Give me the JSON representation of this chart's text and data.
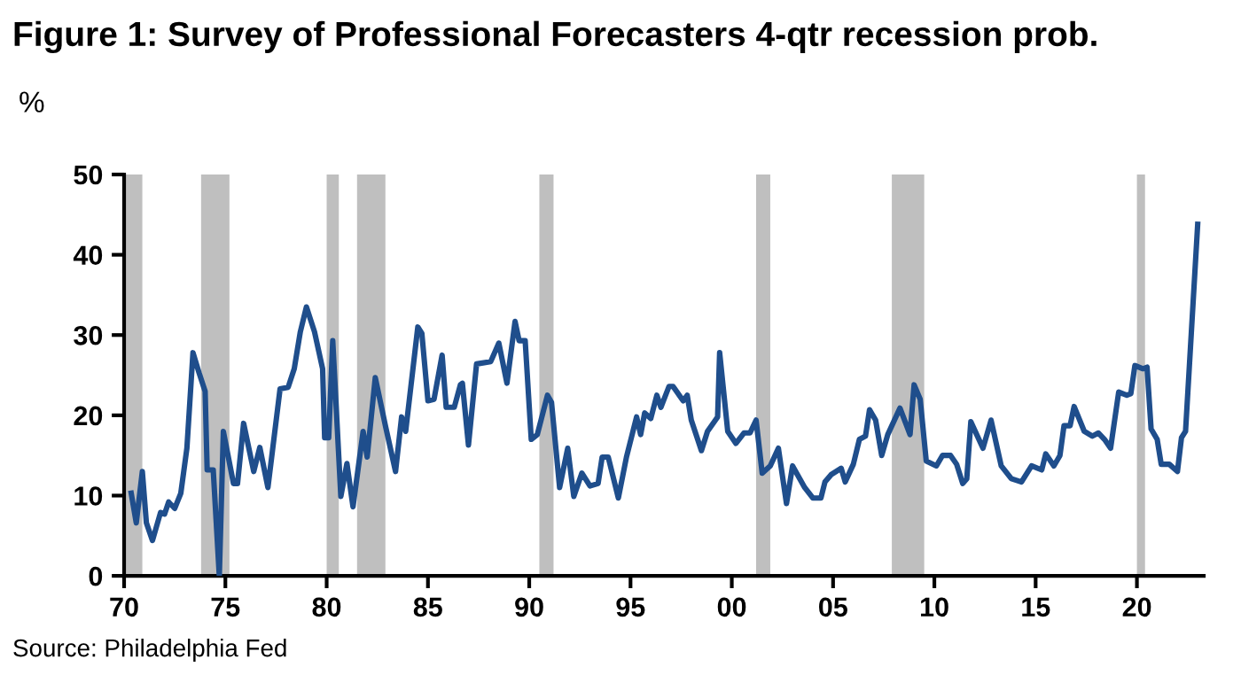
{
  "chart_data": {
    "type": "line",
    "title": "Figure 1: Survey of Professional Forecasters 4-qtr recession prob.",
    "ylabel": "%",
    "annotations": [
      "Source: Philadelphia Fed"
    ],
    "x": [
      1970.35,
      1970.6,
      1970.9,
      1971.1,
      1971.4,
      1971.8,
      1972.0,
      1972.2,
      1972.5,
      1972.8,
      1973.1,
      1973.4,
      1973.7,
      1974.0,
      1974.1,
      1974.4,
      1974.7,
      1974.9,
      1975.4,
      1975.6,
      1975.9,
      1976.4,
      1976.7,
      1977.1,
      1977.7,
      1978.1,
      1978.4,
      1978.7,
      1979.0,
      1979.4,
      1979.8,
      1979.9,
      1980.1,
      1980.3,
      1980.7,
      1981.0,
      1981.3,
      1981.8,
      1982.0,
      1982.4,
      1982.9,
      1983.4,
      1983.7,
      1983.9,
      1984.5,
      1984.7,
      1985.0,
      1985.3,
      1985.7,
      1985.9,
      1986.3,
      1986.6,
      1986.7,
      1987.0,
      1987.4,
      1988.1,
      1988.5,
      1988.9,
      1989.3,
      1989.5,
      1989.8,
      1990.1,
      1990.4,
      1990.9,
      1991.1,
      1991.5,
      1991.9,
      1992.2,
      1992.6,
      1993.0,
      1993.4,
      1993.6,
      1993.9,
      1994.4,
      1994.8,
      1995.3,
      1995.5,
      1995.7,
      1996.0,
      1996.3,
      1996.5,
      1996.9,
      1997.1,
      1997.6,
      1997.8,
      1998.0,
      1998.5,
      1998.8,
      1999.3,
      1999.4,
      1999.8,
      2000.2,
      2000.6,
      2000.9,
      2001.2,
      2001.5,
      2001.9,
      2002.3,
      2002.7,
      2003.0,
      2003.6,
      2004.0,
      2004.4,
      2004.6,
      2004.9,
      2005.4,
      2005.6,
      2006.0,
      2006.3,
      2006.6,
      2006.8,
      2007.1,
      2007.4,
      2007.7,
      2008.3,
      2008.8,
      2009.0,
      2009.3,
      2009.6,
      2010.1,
      2010.4,
      2010.8,
      2011.1,
      2011.4,
      2011.6,
      2011.8,
      2012.4,
      2012.8,
      2013.3,
      2013.8,
      2014.3,
      2014.8,
      2015.3,
      2015.5,
      2015.9,
      2016.2,
      2016.4,
      2016.7,
      2016.9,
      2017.4,
      2017.8,
      2018.1,
      2018.4,
      2018.7,
      2019.1,
      2019.5,
      2019.7,
      2019.9,
      2020.3,
      2020.5,
      2020.7,
      2021.0,
      2021.2,
      2021.6,
      2022.0,
      2022.2,
      2022.4,
      2023.0
    ],
    "series": [
      {
        "color": "#1f4e8c",
        "values": [
          10.3,
          6.6,
          13,
          6.6,
          4.4,
          7.9,
          7.7,
          9.2,
          8.4,
          10.3,
          15.9,
          27.8,
          25.3,
          23,
          13.2,
          13.2,
          0,
          18,
          11.5,
          11.5,
          19,
          13,
          16,
          11,
          23.3,
          23.5,
          25.8,
          30.4,
          33.5,
          30.4,
          25.8,
          17.2,
          17.2,
          29.3,
          9.9,
          14,
          8.6,
          18,
          14.8,
          24.7,
          18.7,
          13,
          19.8,
          18,
          31,
          30.2,
          21.8,
          22,
          27.5,
          21,
          21,
          23.8,
          24,
          16.3,
          26.4,
          26.7,
          29,
          24,
          31.7,
          29.3,
          29.3,
          17,
          17.6,
          22.5,
          21.6,
          11,
          15.9,
          9.9,
          12.8,
          11.2,
          11.5,
          14.8,
          14.8,
          9.7,
          14.8,
          19.8,
          17.6,
          20.3,
          19.6,
          22.5,
          21,
          23.6,
          23.6,
          21.8,
          22.5,
          19.4,
          15.6,
          18,
          19.8,
          27.8,
          18,
          16.5,
          17.8,
          17.8,
          19.4,
          12.8,
          13.7,
          15.9,
          9,
          13.7,
          11,
          9.7,
          9.7,
          11.7,
          12.6,
          13.4,
          11.7,
          13.9,
          17,
          17.4,
          20.7,
          19.4,
          15,
          17.6,
          20.9,
          17.6,
          23.8,
          22,
          14.3,
          13.7,
          15,
          15,
          13.9,
          11.5,
          12.1,
          19.2,
          15.9,
          19.4,
          13.7,
          12.1,
          11.7,
          13.7,
          13.2,
          15.2,
          13.7,
          15,
          18.7,
          18.7,
          21.1,
          18,
          17.4,
          17.8,
          17,
          15.9,
          22.9,
          22.5,
          22.7,
          26.2,
          25.8,
          26,
          18.3,
          17,
          13.9,
          13.9,
          13,
          17.2,
          18,
          43.8
        ]
      }
    ],
    "xlim": [
      1970,
      2023.3
    ],
    "xticks": [
      {
        "value": 1970,
        "label": "70"
      },
      {
        "value": 1975,
        "label": "75"
      },
      {
        "value": 1980,
        "label": "80"
      },
      {
        "value": 1985,
        "label": "85"
      },
      {
        "value": 1990,
        "label": "90"
      },
      {
        "value": 1995,
        "label": "95"
      },
      {
        "value": 2000,
        "label": "00"
      },
      {
        "value": 2005,
        "label": "05"
      },
      {
        "value": 2010,
        "label": "10"
      },
      {
        "value": 2015,
        "label": "15"
      },
      {
        "value": 2020,
        "label": "20"
      }
    ],
    "ylim": [
      0,
      50
    ],
    "yticks": [
      0,
      10,
      20,
      30,
      40,
      50
    ],
    "grid": false,
    "legend": false,
    "marker": "none",
    "line_style": "solid",
    "bands": [
      {
        "axis": "x",
        "from": 1969.9,
        "to": 1970.9,
        "color": "#bfbfbf"
      },
      {
        "axis": "x",
        "from": 1973.8,
        "to": 1975.2,
        "color": "#bfbfbf"
      },
      {
        "axis": "x",
        "from": 1980.0,
        "to": 1980.6,
        "color": "#bfbfbf"
      },
      {
        "axis": "x",
        "from": 1981.5,
        "to": 1982.9,
        "color": "#bfbfbf"
      },
      {
        "axis": "x",
        "from": 1990.5,
        "to": 1991.2,
        "color": "#bfbfbf"
      },
      {
        "axis": "x",
        "from": 2001.2,
        "to": 2001.9,
        "color": "#bfbfbf"
      },
      {
        "axis": "x",
        "from": 2007.9,
        "to": 2009.5,
        "color": "#bfbfbf"
      },
      {
        "axis": "x",
        "from": 2020.0,
        "to": 2020.4,
        "color": "#bfbfbf"
      }
    ]
  }
}
